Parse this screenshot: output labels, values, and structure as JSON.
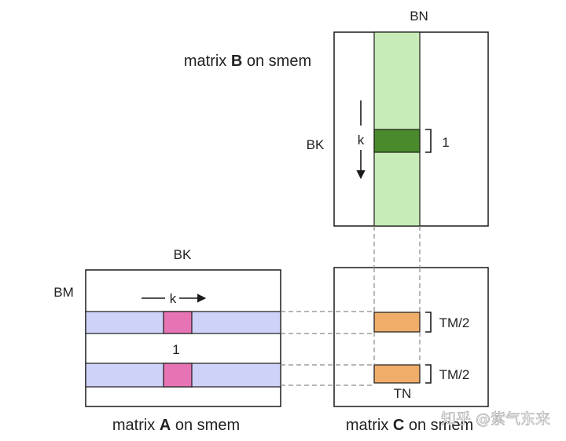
{
  "matrix_b": {
    "title_prefix": "matrix ",
    "title_bold": "B",
    "title_suffix": " on smem",
    "col_label": "BN",
    "row_label": "BK",
    "k_label": "k",
    "slice_label": "1"
  },
  "matrix_a": {
    "title_prefix": "matrix ",
    "title_bold": "A",
    "title_suffix": " on smem",
    "col_label": "BK",
    "row_label": "BM",
    "k_label": "k",
    "slice_label": "1"
  },
  "matrix_c": {
    "title_prefix": "matrix ",
    "title_bold": "C",
    "title_suffix": " on smem",
    "tile_label_top": "TM/2",
    "tile_label_bottom": "TM/2",
    "width_label": "TN"
  },
  "watermark": "知乎 @紫气东来",
  "colors": {
    "b_column": "#c8ecb7",
    "b_slice": "#4a8a2c",
    "a_row": "#cfd2f8",
    "a_slice": "#e673b4",
    "c_tile": "#efad69",
    "outline": "#1a1a1a",
    "dashed": "#8a8a8a"
  }
}
